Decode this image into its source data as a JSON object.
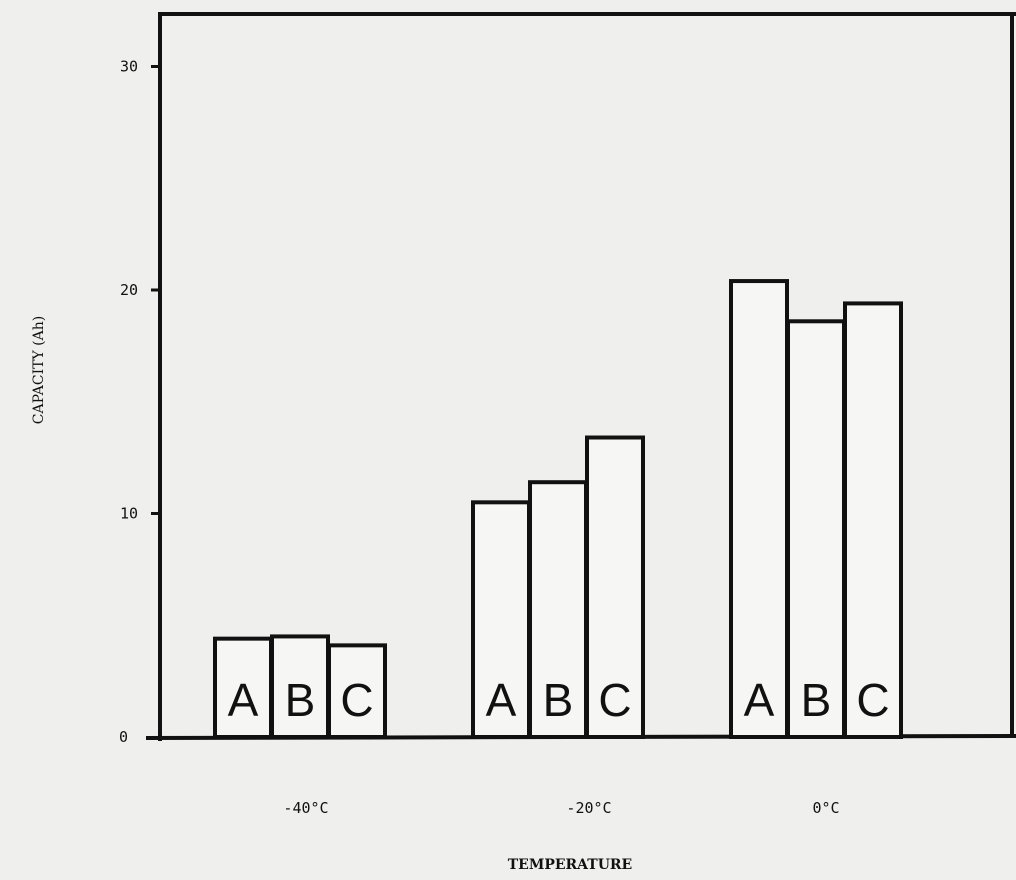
{
  "chart_data": {
    "type": "bar",
    "title": "",
    "xlabel": "TEMPERATURE",
    "ylabel": "CAPACITY (Ah)",
    "ylim": [
      0,
      32
    ],
    "yticks": [
      "0",
      "10",
      "20",
      "30"
    ],
    "categories": [
      "-40°C",
      "-20°C",
      "0°C"
    ],
    "series": [
      {
        "name": "A",
        "values": [
          4.4,
          10.5,
          20.4
        ]
      },
      {
        "name": "B",
        "values": [
          4.5,
          11.4,
          18.6
        ]
      },
      {
        "name": "C",
        "values": [
          4.1,
          13.4,
          19.4
        ]
      }
    ],
    "grid": false,
    "legend": "none"
  }
}
